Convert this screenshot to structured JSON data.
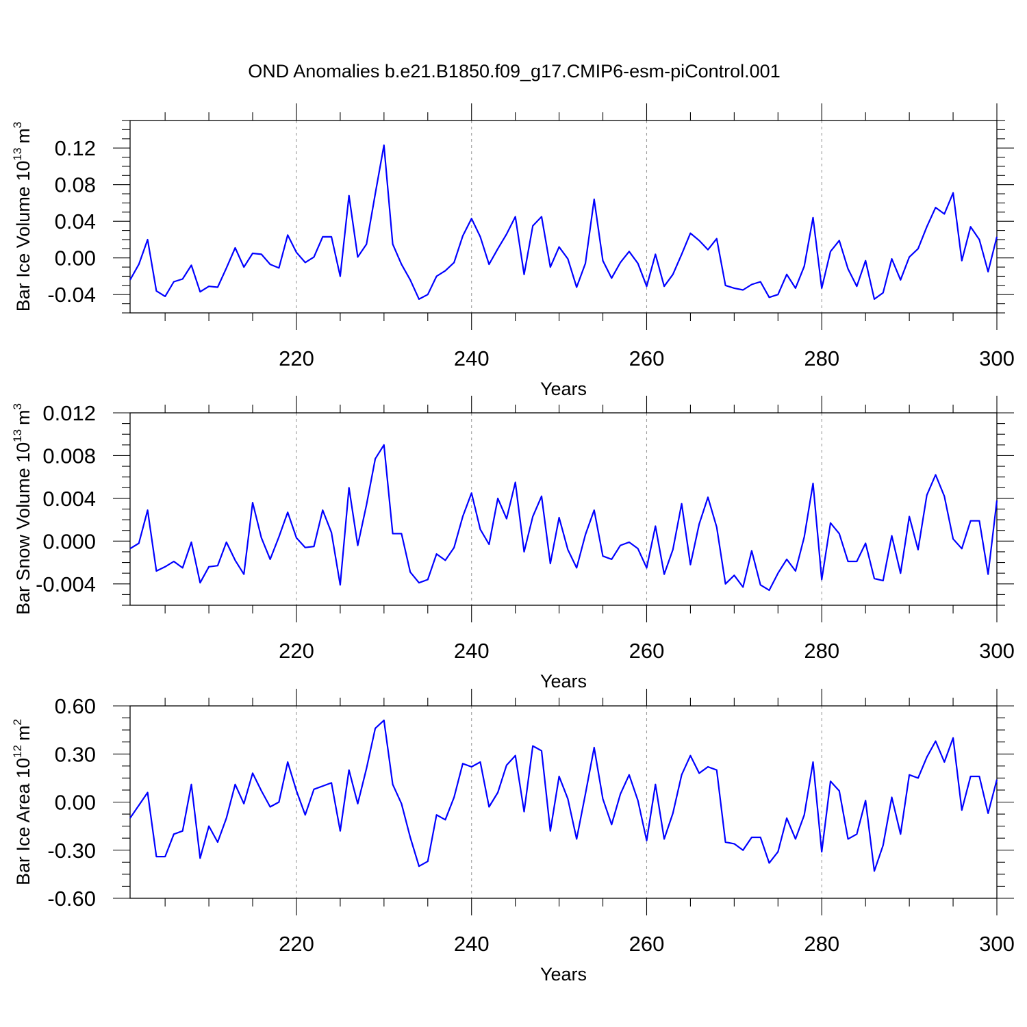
{
  "title": "OND Anomalies b.e21.B1850.f09_g17.CMIP6-esm-piControl.001",
  "colors": {
    "line": "#0000ff",
    "grid": "#9a9a9a",
    "axis": "#000000"
  },
  "chart_data": [
    {
      "type": "line",
      "ylabel_main": "Bar Ice Volume 10",
      "ylabel_exp": "13",
      "ylabel_unit": "m",
      "ylabel_unit_exp": "3",
      "xlabel": "Years",
      "xlim": [
        201,
        300
      ],
      "ylim": [
        -0.06,
        0.15
      ],
      "xticks": [
        220,
        240,
        260,
        280,
        300
      ],
      "yticks": [
        -0.04,
        0.0,
        0.04,
        0.08,
        0.12
      ],
      "ytick_labels": [
        "-0.04",
        "0.00",
        "0.04",
        "0.08",
        "0.12"
      ],
      "series": [
        {
          "name": "Bar Ice Volume",
          "x_start": 201,
          "values": [
            -0.024,
            -0.007,
            0.02,
            -0.036,
            -0.042,
            -0.026,
            -0.023,
            -0.008,
            -0.037,
            -0.031,
            -0.032,
            -0.011,
            0.011,
            -0.01,
            0.005,
            0.004,
            -0.007,
            -0.011,
            0.025,
            0.006,
            -0.005,
            0.001,
            0.023,
            0.023,
            -0.02,
            0.068,
            0.001,
            0.015,
            0.07,
            0.123,
            0.015,
            -0.007,
            -0.024,
            -0.045,
            -0.04,
            -0.02,
            -0.014,
            -0.005,
            0.024,
            0.043,
            0.023,
            -0.007,
            0.01,
            0.026,
            0.045,
            -0.018,
            0.035,
            0.045,
            -0.01,
            0.012,
            -0.001,
            -0.032,
            -0.006,
            0.064,
            -0.003,
            -0.022,
            -0.005,
            0.007,
            -0.006,
            -0.031,
            0.004,
            -0.031,
            -0.018,
            0.004,
            0.027,
            0.019,
            0.009,
            0.021,
            -0.03,
            -0.033,
            -0.035,
            -0.029,
            -0.026,
            -0.043,
            -0.04,
            -0.018,
            -0.033,
            -0.009,
            0.044,
            -0.033,
            0.007,
            0.019,
            -0.012,
            -0.031,
            -0.003,
            -0.045,
            -0.038,
            -0.001,
            -0.024,
            0.001,
            0.01,
            0.034,
            0.055,
            0.048,
            0.071,
            -0.003,
            0.034,
            0.02,
            -0.015,
            0.023
          ]
        }
      ]
    },
    {
      "type": "line",
      "ylabel_main": "Bar Snow Volume 10",
      "ylabel_exp": "13",
      "ylabel_unit": "m",
      "ylabel_unit_exp": "3",
      "xlabel": "Years",
      "xlim": [
        201,
        300
      ],
      "ylim": [
        -0.006,
        0.012
      ],
      "xticks": [
        220,
        240,
        260,
        280,
        300
      ],
      "yticks": [
        -0.004,
        0.0,
        0.004,
        0.008,
        0.012
      ],
      "ytick_labels": [
        "-0.004",
        "0.000",
        "0.004",
        "0.008",
        "0.012"
      ],
      "series": [
        {
          "name": "Bar Snow Volume",
          "x_start": 201,
          "values": [
            -0.0007,
            -0.0002,
            0.0029,
            -0.0028,
            -0.0024,
            -0.0019,
            -0.0025,
            -0.0001,
            -0.0039,
            -0.0024,
            -0.0023,
            -0.0001,
            -0.0018,
            -0.0031,
            0.0036,
            0.0003,
            -0.0017,
            0.0004,
            0.0027,
            0.0003,
            -0.0006,
            -0.0005,
            0.0029,
            0.0008,
            -0.0041,
            0.005,
            -0.0004,
            0.0034,
            0.0077,
            0.009,
            0.0007,
            0.0007,
            -0.0029,
            -0.0039,
            -0.0036,
            -0.0012,
            -0.0018,
            -0.0006,
            0.0023,
            0.0045,
            0.0011,
            -0.0003,
            0.004,
            0.0021,
            0.0055,
            -0.001,
            0.0023,
            0.0042,
            -0.0021,
            0.0022,
            -0.0008,
            -0.0025,
            0.0006,
            0.0029,
            -0.0014,
            -0.0017,
            -0.0004,
            -0.0001,
            -0.0007,
            -0.0025,
            0.0014,
            -0.0031,
            -0.0008,
            0.0035,
            -0.0022,
            0.0016,
            0.0041,
            0.0013,
            -0.004,
            -0.0032,
            -0.0043,
            -0.0009,
            -0.0041,
            -0.0046,
            -0.003,
            -0.0017,
            -0.0028,
            0.0004,
            0.0054,
            -0.0036,
            0.0017,
            0.0007,
            -0.0019,
            -0.0019,
            -0.0002,
            -0.0035,
            -0.0037,
            0.0005,
            -0.003,
            0.0023,
            -0.0008,
            0.0043,
            0.0062,
            0.0042,
            0.0002,
            -0.0007,
            0.0019,
            0.0019,
            -0.0031,
            0.0038
          ]
        }
      ]
    },
    {
      "type": "line",
      "ylabel_main": "Bar Ice Area 10",
      "ylabel_exp": "12",
      "ylabel_unit": "m",
      "ylabel_unit_exp": "2",
      "xlabel": "Years",
      "xlim": [
        201,
        300
      ],
      "ylim": [
        -0.6,
        0.6
      ],
      "xticks": [
        220,
        240,
        260,
        280,
        300
      ],
      "yticks": [
        -0.6,
        -0.3,
        0.0,
        0.3,
        0.6
      ],
      "ytick_labels": [
        "-0.60",
        "-0.30",
        "0.00",
        "0.30",
        "0.60"
      ],
      "series": [
        {
          "name": "Bar Ice Area",
          "x_start": 201,
          "values": [
            -0.1,
            -0.02,
            0.06,
            -0.34,
            -0.34,
            -0.2,
            -0.18,
            0.11,
            -0.35,
            -0.15,
            -0.25,
            -0.1,
            0.11,
            -0.01,
            0.18,
            0.07,
            -0.03,
            0.0,
            0.25,
            0.07,
            -0.08,
            0.08,
            0.1,
            0.12,
            -0.18,
            0.2,
            -0.01,
            0.21,
            0.46,
            0.51,
            0.11,
            -0.01,
            -0.22,
            -0.4,
            -0.37,
            -0.08,
            -0.11,
            0.03,
            0.24,
            0.22,
            0.25,
            -0.03,
            0.06,
            0.23,
            0.29,
            -0.06,
            0.35,
            0.32,
            -0.18,
            0.16,
            0.02,
            -0.23,
            0.05,
            0.34,
            0.02,
            -0.14,
            0.05,
            0.17,
            0.01,
            -0.24,
            0.11,
            -0.23,
            -0.07,
            0.17,
            0.29,
            0.18,
            0.22,
            0.2,
            -0.25,
            -0.26,
            -0.3,
            -0.22,
            -0.22,
            -0.38,
            -0.31,
            -0.1,
            -0.23,
            -0.08,
            0.25,
            -0.31,
            0.13,
            0.07,
            -0.23,
            -0.2,
            0.01,
            -0.43,
            -0.27,
            0.03,
            -0.2,
            0.17,
            0.15,
            0.28,
            0.38,
            0.25,
            0.4,
            -0.05,
            0.16,
            0.16,
            -0.07,
            0.14
          ]
        }
      ]
    }
  ]
}
